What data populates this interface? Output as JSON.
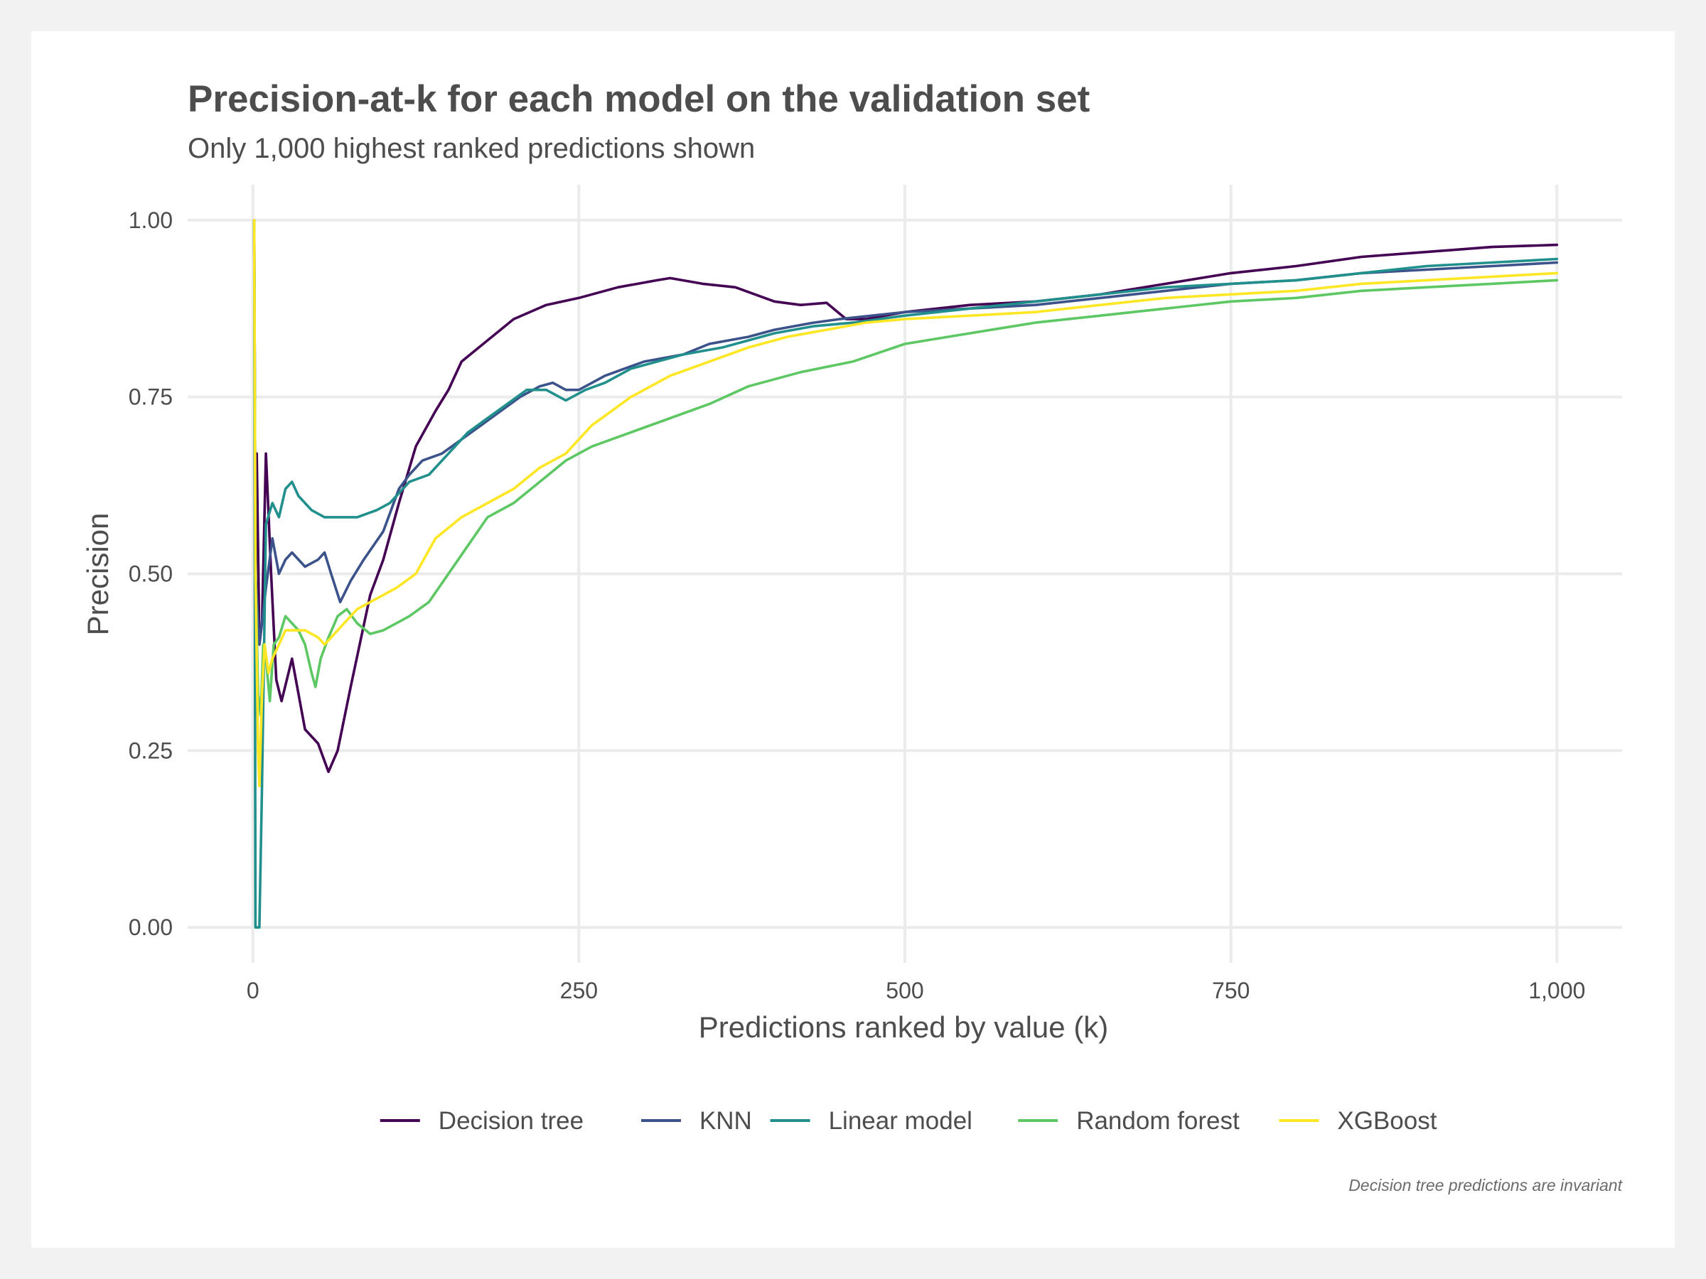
{
  "chart_data": {
    "type": "line",
    "title": "Precision-at-k for each model on the validation set",
    "subtitle": "Only 1,000 highest ranked predictions shown",
    "xlabel": "Predictions ranked by value (k)",
    "ylabel": "Precision",
    "caption": "Decision tree predictions are invariant",
    "xlim": [
      -50,
      1050
    ],
    "ylim": [
      -0.05,
      1.05
    ],
    "x_ticks": [
      0,
      250,
      500,
      750,
      1000
    ],
    "x_tick_labels": [
      "0",
      "250",
      "500",
      "750",
      "1,000"
    ],
    "y_ticks": [
      0,
      0.25,
      0.5,
      0.75,
      1.0
    ],
    "y_tick_labels": [
      "0.00",
      "0.25",
      "0.50",
      "0.75",
      "1.00"
    ],
    "grid": true,
    "legend_position": "bottom",
    "series": [
      {
        "name": "Decision tree",
        "color": "#440154",
        "points": [
          [
            1,
            1.0
          ],
          [
            2,
            0.5
          ],
          [
            3,
            0.67
          ],
          [
            5,
            0.4
          ],
          [
            7,
            0.43
          ],
          [
            10,
            0.67
          ],
          [
            14,
            0.5
          ],
          [
            18,
            0.35
          ],
          [
            22,
            0.32
          ],
          [
            30,
            0.38
          ],
          [
            40,
            0.28
          ],
          [
            50,
            0.26
          ],
          [
            58,
            0.22
          ],
          [
            65,
            0.25
          ],
          [
            75,
            0.34
          ],
          [
            90,
            0.47
          ],
          [
            100,
            0.52
          ],
          [
            112,
            0.6
          ],
          [
            125,
            0.68
          ],
          [
            140,
            0.73
          ],
          [
            150,
            0.76
          ],
          [
            160,
            0.8
          ],
          [
            180,
            0.83
          ],
          [
            200,
            0.86
          ],
          [
            225,
            0.88
          ],
          [
            250,
            0.89
          ],
          [
            280,
            0.905
          ],
          [
            310,
            0.915
          ],
          [
            320,
            0.918
          ],
          [
            345,
            0.91
          ],
          [
            370,
            0.905
          ],
          [
            400,
            0.885
          ],
          [
            420,
            0.88
          ],
          [
            440,
            0.883
          ],
          [
            455,
            0.86
          ],
          [
            470,
            0.86
          ],
          [
            500,
            0.87
          ],
          [
            550,
            0.88
          ],
          [
            600,
            0.885
          ],
          [
            650,
            0.895
          ],
          [
            700,
            0.91
          ],
          [
            750,
            0.925
          ],
          [
            800,
            0.935
          ],
          [
            850,
            0.948
          ],
          [
            900,
            0.955
          ],
          [
            950,
            0.962
          ],
          [
            1000,
            0.965
          ]
        ]
      },
      {
        "name": "KNN",
        "color": "#3b528b",
        "points": [
          [
            1,
            1.0
          ],
          [
            2,
            0.5
          ],
          [
            5,
            0.4
          ],
          [
            10,
            0.48
          ],
          [
            15,
            0.55
          ],
          [
            20,
            0.5
          ],
          [
            25,
            0.52
          ],
          [
            30,
            0.53
          ],
          [
            40,
            0.51
          ],
          [
            50,
            0.52
          ],
          [
            55,
            0.53
          ],
          [
            60,
            0.5
          ],
          [
            67,
            0.46
          ],
          [
            75,
            0.49
          ],
          [
            85,
            0.52
          ],
          [
            100,
            0.56
          ],
          [
            112,
            0.62
          ],
          [
            120,
            0.64
          ],
          [
            130,
            0.66
          ],
          [
            145,
            0.67
          ],
          [
            160,
            0.69
          ],
          [
            175,
            0.71
          ],
          [
            190,
            0.73
          ],
          [
            205,
            0.75
          ],
          [
            220,
            0.765
          ],
          [
            230,
            0.77
          ],
          [
            240,
            0.76
          ],
          [
            250,
            0.76
          ],
          [
            270,
            0.78
          ],
          [
            300,
            0.8
          ],
          [
            330,
            0.81
          ],
          [
            350,
            0.825
          ],
          [
            380,
            0.835
          ],
          [
            400,
            0.845
          ],
          [
            430,
            0.855
          ],
          [
            450,
            0.86
          ],
          [
            500,
            0.87
          ],
          [
            550,
            0.875
          ],
          [
            600,
            0.88
          ],
          [
            650,
            0.89
          ],
          [
            700,
            0.9
          ],
          [
            750,
            0.91
          ],
          [
            800,
            0.915
          ],
          [
            850,
            0.925
          ],
          [
            900,
            0.93
          ],
          [
            950,
            0.935
          ],
          [
            1000,
            0.94
          ]
        ]
      },
      {
        "name": "Linear model",
        "color": "#21908d",
        "points": [
          [
            1,
            1.0
          ],
          [
            2,
            0.0
          ],
          [
            5,
            0.0
          ],
          [
            7,
            0.2
          ],
          [
            10,
            0.57
          ],
          [
            15,
            0.6
          ],
          [
            20,
            0.58
          ],
          [
            25,
            0.62
          ],
          [
            30,
            0.63
          ],
          [
            35,
            0.61
          ],
          [
            40,
            0.6
          ],
          [
            45,
            0.59
          ],
          [
            55,
            0.58
          ],
          [
            65,
            0.58
          ],
          [
            80,
            0.58
          ],
          [
            95,
            0.59
          ],
          [
            105,
            0.6
          ],
          [
            120,
            0.63
          ],
          [
            135,
            0.64
          ],
          [
            150,
            0.67
          ],
          [
            165,
            0.7
          ],
          [
            180,
            0.72
          ],
          [
            195,
            0.74
          ],
          [
            210,
            0.76
          ],
          [
            225,
            0.76
          ],
          [
            240,
            0.745
          ],
          [
            255,
            0.76
          ],
          [
            270,
            0.77
          ],
          [
            290,
            0.79
          ],
          [
            310,
            0.8
          ],
          [
            330,
            0.81
          ],
          [
            360,
            0.82
          ],
          [
            400,
            0.84
          ],
          [
            430,
            0.85
          ],
          [
            460,
            0.855
          ],
          [
            500,
            0.865
          ],
          [
            550,
            0.875
          ],
          [
            600,
            0.885
          ],
          [
            650,
            0.895
          ],
          [
            700,
            0.905
          ],
          [
            750,
            0.91
          ],
          [
            800,
            0.915
          ],
          [
            850,
            0.925
          ],
          [
            900,
            0.935
          ],
          [
            950,
            0.94
          ],
          [
            1000,
            0.945
          ]
        ]
      },
      {
        "name": "Random forest",
        "color": "#5dc863",
        "points": [
          [
            1,
            1.0
          ],
          [
            2,
            0.5
          ],
          [
            4,
            0.33
          ],
          [
            6,
            0.3
          ],
          [
            8,
            0.4
          ],
          [
            10,
            0.38
          ],
          [
            13,
            0.32
          ],
          [
            16,
            0.4
          ],
          [
            20,
            0.41
          ],
          [
            25,
            0.44
          ],
          [
            30,
            0.43
          ],
          [
            35,
            0.42
          ],
          [
            40,
            0.4
          ],
          [
            45,
            0.36
          ],
          [
            48,
            0.34
          ],
          [
            52,
            0.38
          ],
          [
            58,
            0.41
          ],
          [
            65,
            0.44
          ],
          [
            72,
            0.45
          ],
          [
            80,
            0.43
          ],
          [
            90,
            0.415
          ],
          [
            100,
            0.42
          ],
          [
            110,
            0.43
          ],
          [
            120,
            0.44
          ],
          [
            135,
            0.46
          ],
          [
            150,
            0.5
          ],
          [
            165,
            0.54
          ],
          [
            180,
            0.58
          ],
          [
            200,
            0.6
          ],
          [
            220,
            0.63
          ],
          [
            240,
            0.66
          ],
          [
            260,
            0.68
          ],
          [
            290,
            0.7
          ],
          [
            320,
            0.72
          ],
          [
            350,
            0.74
          ],
          [
            380,
            0.765
          ],
          [
            420,
            0.785
          ],
          [
            460,
            0.8
          ],
          [
            500,
            0.825
          ],
          [
            550,
            0.84
          ],
          [
            600,
            0.855
          ],
          [
            650,
            0.865
          ],
          [
            700,
            0.875
          ],
          [
            750,
            0.885
          ],
          [
            800,
            0.89
          ],
          [
            850,
            0.9
          ],
          [
            900,
            0.905
          ],
          [
            950,
            0.91
          ],
          [
            1000,
            0.915
          ]
        ]
      },
      {
        "name": "XGBoost",
        "color": "#fde725",
        "points": [
          [
            1,
            1.0
          ],
          [
            2,
            0.5
          ],
          [
            4,
            0.25
          ],
          [
            5,
            0.2
          ],
          [
            7,
            0.33
          ],
          [
            9,
            0.4
          ],
          [
            12,
            0.36
          ],
          [
            15,
            0.38
          ],
          [
            20,
            0.4
          ],
          [
            25,
            0.42
          ],
          [
            30,
            0.42
          ],
          [
            40,
            0.42
          ],
          [
            50,
            0.41
          ],
          [
            55,
            0.4
          ],
          [
            60,
            0.41
          ],
          [
            70,
            0.43
          ],
          [
            80,
            0.45
          ],
          [
            90,
            0.46
          ],
          [
            100,
            0.47
          ],
          [
            110,
            0.48
          ],
          [
            125,
            0.5
          ],
          [
            140,
            0.55
          ],
          [
            160,
            0.58
          ],
          [
            180,
            0.6
          ],
          [
            200,
            0.62
          ],
          [
            220,
            0.65
          ],
          [
            240,
            0.67
          ],
          [
            260,
            0.71
          ],
          [
            290,
            0.75
          ],
          [
            320,
            0.78
          ],
          [
            350,
            0.8
          ],
          [
            380,
            0.82
          ],
          [
            410,
            0.835
          ],
          [
            440,
            0.845
          ],
          [
            470,
            0.855
          ],
          [
            500,
            0.86
          ],
          [
            550,
            0.865
          ],
          [
            600,
            0.87
          ],
          [
            650,
            0.88
          ],
          [
            700,
            0.89
          ],
          [
            750,
            0.895
          ],
          [
            800,
            0.9
          ],
          [
            850,
            0.91
          ],
          [
            900,
            0.915
          ],
          [
            950,
            0.92
          ],
          [
            1000,
            0.925
          ]
        ]
      }
    ]
  }
}
